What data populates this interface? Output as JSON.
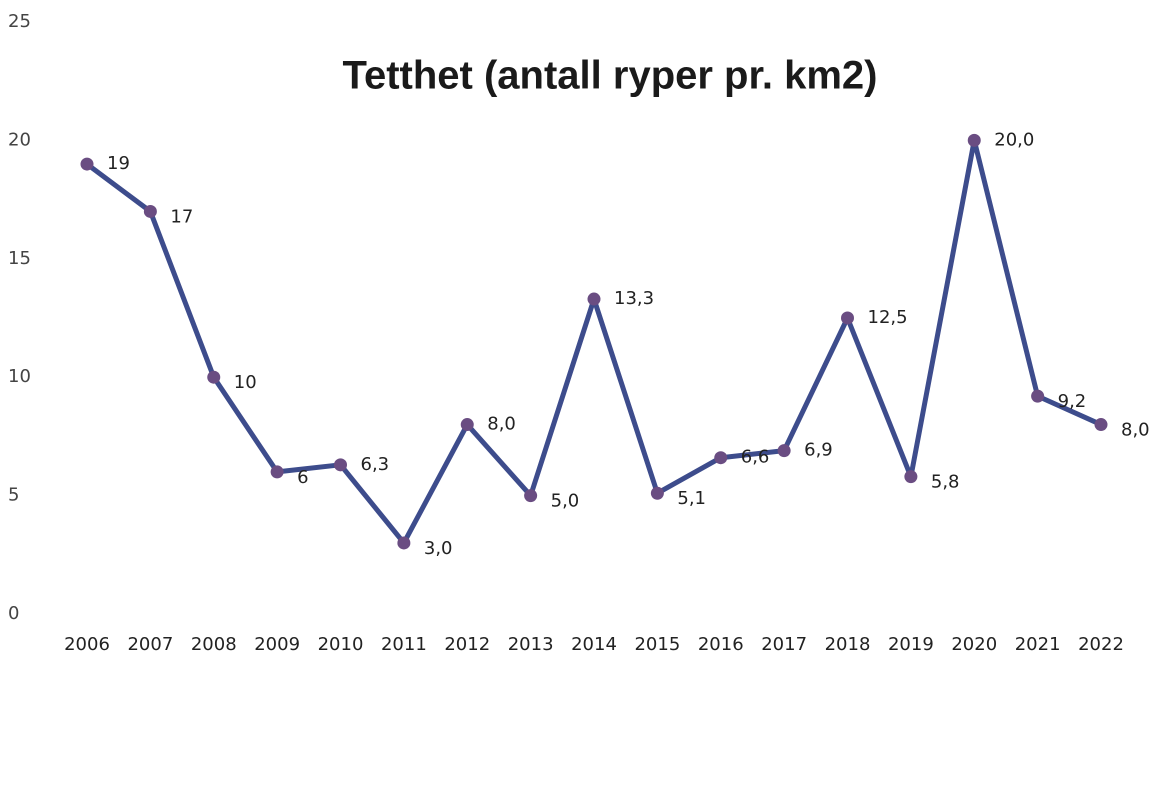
{
  "chart_data": {
    "type": "line",
    "title": "Tetthet (antall ryper pr. km2)",
    "categories": [
      "2006",
      "2007",
      "2008",
      "2009",
      "2010",
      "2011",
      "2012",
      "2013",
      "2014",
      "2015",
      "2016",
      "2017",
      "2018",
      "2019",
      "2020",
      "2021",
      "2022"
    ],
    "series": [
      {
        "name": "Tetthet",
        "color": "#3d4c8c",
        "marker_color": "#6a4d82",
        "values": [
          19,
          17,
          10,
          6,
          6.3,
          3.0,
          8.0,
          5.0,
          13.3,
          5.1,
          6.6,
          6.9,
          12.5,
          5.8,
          20.0,
          9.2,
          8.0
        ],
        "value_labels": [
          "19",
          "17",
          "10",
          "6",
          "6,3",
          "3,0",
          "8,0",
          "5,0",
          "13,3",
          "5,1",
          "6,6",
          "6,9",
          "12,5",
          "5,8",
          "20,0",
          "9,2",
          "8,0"
        ]
      }
    ],
    "ylim": [
      0,
      25
    ],
    "yticks": [
      0,
      5,
      10,
      15,
      20,
      25
    ],
    "grid": false
  }
}
